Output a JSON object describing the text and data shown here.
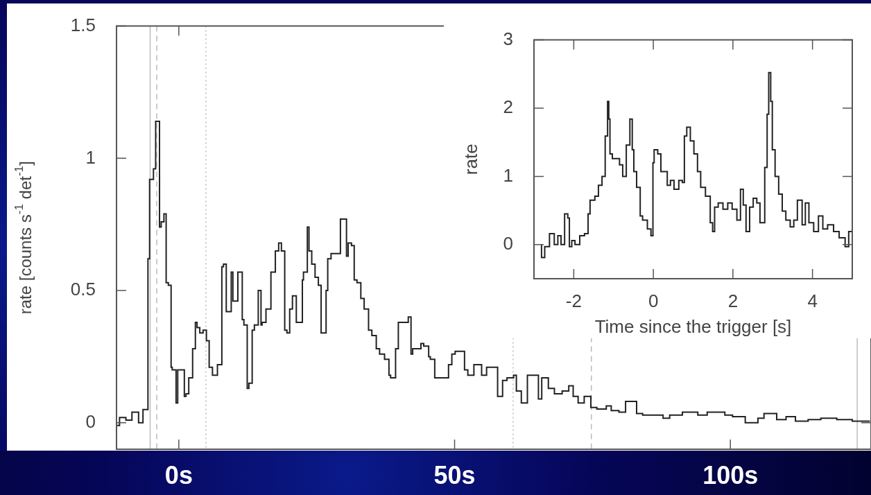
{
  "chart_data": [
    {
      "type": "step",
      "ylabel": "rate [counts s$^{-1}$ det$^{-1}$]",
      "color": "#222222",
      "x": [
        -11.3,
        -10.75,
        -9.6,
        -8.5,
        -7.3,
        -6.5,
        -5.6,
        -5.3,
        -4.6,
        -4.2,
        -3.9,
        -3.5,
        -3.2,
        -2.7,
        -2.3,
        -1.9,
        -1.4,
        -1.2,
        -0.5,
        -0.2,
        0.4,
        1.0,
        1.3,
        1.8,
        2.5,
        3.0,
        3.3,
        3.8,
        4.4,
        5.0,
        5.5,
        6.1,
        7.0,
        7.8,
        8.1,
        8.6,
        8.8,
        9.5,
        9.8,
        10.3,
        10.7,
        11.0,
        11.5,
        11.8,
        12.4,
        12.7,
        13.3,
        13.7,
        14.4,
        14.9,
        15.1,
        15.8,
        16.7,
        17.5,
        18.1,
        18.6,
        19.2,
        19.6,
        20.1,
        20.6,
        21.3,
        21.8,
        22.4,
        22.6,
        23.3,
        23.6,
        24.1,
        24.7,
        25.3,
        25.8,
        26.1,
        26.7,
        27.0,
        27.6,
        28.4,
        29.3,
        29.8,
        30.4,
        30.7,
        31.3,
        31.8,
        32.3,
        33.0,
        33.6,
        34.4,
        35.0,
        35.8,
        36.4,
        37.3,
        38.1,
        38.4,
        39.3,
        39.8,
        40.4,
        41.6,
        42.1,
        42.4,
        43.9,
        44.4,
        45.3,
        45.6,
        46.4,
        47.0,
        48.9,
        49.5,
        50.1,
        51.8,
        52.4,
        53.5,
        54.9,
        55.8,
        57.0,
        57.8,
        58.7,
        59.5,
        60.7,
        61.2,
        62.1,
        63.2,
        64.4,
        65.2,
        65.8,
        67.0,
        68.1,
        69.5,
        70.7,
        71.5,
        72.4,
        73.5,
        74.7,
        75.8,
        77.5,
        78.4,
        79.8,
        81.0,
        81.8,
        83.0,
        84.1,
        85.5,
        87.8,
        89.0,
        91.3,
        94.1,
        95.8,
        99.0,
        100.4,
        102.7,
        105.0,
        106.1,
        108.4,
        110.1,
        111.8,
        114.1,
        116.4,
        119.3,
        122.1,
        123.8,
        125.3
      ],
      "values": [
        0,
        -0.01,
        0.02,
        0.01,
        0.04,
        0.0,
        0.05,
        0.62,
        0.92,
        0.96,
        1.14,
        1.14,
        0.74,
        0.76,
        0.79,
        0.53,
        0.52,
        0.21,
        0.2,
        0.075,
        0.2,
        0.2,
        0.1,
        0.11,
        0.17,
        0.28,
        0.38,
        0.36,
        0.34,
        0.35,
        0.31,
        0.21,
        0.18,
        0.22,
        0.59,
        0.6,
        0.42,
        0.42,
        0.57,
        0.46,
        0.46,
        0.57,
        0.57,
        0.39,
        0.37,
        0.13,
        0.15,
        0.35,
        0.37,
        0.5,
        0.37,
        0.38,
        0.43,
        0.57,
        0.65,
        0.68,
        0.65,
        0.35,
        0.34,
        0.43,
        0.48,
        0.38,
        0.38,
        0.54,
        0.57,
        0.74,
        0.65,
        0.6,
        0.55,
        0.52,
        0.34,
        0.34,
        0.5,
        0.62,
        0.64,
        0.64,
        0.77,
        0.77,
        0.63,
        0.68,
        0.67,
        0.54,
        0.53,
        0.47,
        0.43,
        0.35,
        0.33,
        0.28,
        0.26,
        0.24,
        0.18,
        0.17,
        0.28,
        0.38,
        0.38,
        0.4,
        0.26,
        0.28,
        0.3,
        0.29,
        0.25,
        0.24,
        0.17,
        0.17,
        0.22,
        0.26,
        0.27,
        0.2,
        0.18,
        0.22,
        0.18,
        0.21,
        0.21,
        0.1,
        0.16,
        0.17,
        0.18,
        0.12,
        0.075,
        0.18,
        0.18,
        0.09,
        0.17,
        0.13,
        0.11,
        0.12,
        0.14,
        0.1,
        0.075,
        0.1,
        0.058,
        0.052,
        0.064,
        0.046,
        0.04,
        0.081,
        0.081,
        0.035,
        0.029,
        0.029,
        0.017,
        0.029,
        0.04,
        0.029,
        0.04,
        0.029,
        0.023,
        0.0,
        0.017,
        0.035,
        0.012,
        0.023,
        0.006,
        0.012,
        0.017,
        0.012,
        0.006,
        0.006
      ],
      "xlim": [
        -11.3,
        125.5
      ],
      "xticks": [
        {
          "value": 0,
          "label": "0s"
        },
        {
          "value": 50,
          "label": "50s"
        },
        {
          "value": 100,
          "label": "100s"
        }
      ],
      "ylim": [
        -0.1,
        1.5
      ],
      "yticks": [
        0,
        0.5,
        1,
        1.5
      ],
      "ref_lines": [
        {
          "axis": "x",
          "value": -5.2,
          "color": "#bbbbbb",
          "line_style": "solid"
        },
        {
          "axis": "x",
          "value": -4.0,
          "color": "#bbbbbb",
          "line_style": "dashed"
        },
        {
          "axis": "x",
          "value": 4.9,
          "color": "#bbbbbb",
          "line_style": "dotted"
        },
        {
          "axis": "x",
          "value": 60.6,
          "color": "#bbbbbb",
          "line_style": "dotted"
        },
        {
          "axis": "x",
          "value": 74.8,
          "color": "#bbbbbb",
          "line_style": "dashed"
        },
        {
          "axis": "x",
          "value": 123.0,
          "color": "#bbbbbb",
          "line_style": "solid"
        }
      ]
    },
    {
      "type": "step",
      "xlabel": "Time since the trigger [s]",
      "ylabel": "rate",
      "color": "#222222",
      "x": [
        -2.81,
        -2.73,
        -2.61,
        -2.49,
        -2.4,
        -2.32,
        -2.23,
        -2.15,
        -2.11,
        -2.05,
        -1.97,
        -1.85,
        -1.73,
        -1.64,
        -1.59,
        -1.47,
        -1.38,
        -1.29,
        -1.21,
        -1.15,
        -1.12,
        -1.09,
        -1.03,
        -0.94,
        -0.85,
        -0.77,
        -0.68,
        -0.59,
        -0.53,
        -0.49,
        -0.42,
        -0.33,
        -0.27,
        -0.15,
        -0.06,
        -0.01,
        0.02,
        0.11,
        0.19,
        0.26,
        0.35,
        0.43,
        0.52,
        0.64,
        0.73,
        0.78,
        0.84,
        0.93,
        1.02,
        1.11,
        1.19,
        1.31,
        1.43,
        1.49,
        1.54,
        1.63,
        1.75,
        1.87,
        1.98,
        2.1,
        2.19,
        2.26,
        2.33,
        2.42,
        2.51,
        2.6,
        2.68,
        2.8,
        2.86,
        2.9,
        2.95,
        2.99,
        3.06,
        3.15,
        3.24,
        3.33,
        3.44,
        3.53,
        3.62,
        3.74,
        3.82,
        3.91,
        4.03,
        4.15,
        4.26,
        4.38,
        4.53,
        4.67,
        4.82,
        4.91,
        4.99
      ],
      "values": [
        0,
        -0.19,
        -0.03,
        0.16,
        0,
        0.13,
        0,
        0.45,
        0.39,
        -0.03,
        0.06,
        0,
        0.13,
        0.16,
        0.45,
        0.65,
        0.71,
        0.87,
        1.0,
        1.59,
        2.1,
        1.84,
        1.33,
        1.26,
        1.26,
        1.17,
        1.0,
        1.46,
        1.84,
        1.39,
        1.07,
        0.84,
        0.42,
        0.36,
        0.23,
        0.13,
        1.2,
        1.39,
        1.33,
        1.07,
        1.07,
        0.87,
        0.94,
        0.81,
        0.94,
        0.91,
        1.59,
        1.72,
        1.52,
        1.33,
        1.07,
        0.84,
        0.71,
        0.32,
        0.19,
        0.55,
        0.61,
        0.52,
        0.61,
        0.52,
        0.36,
        0.81,
        0.58,
        0.19,
        0.55,
        0.68,
        0.61,
        0.32,
        1.13,
        1.91,
        2.52,
        2.1,
        1.39,
        1.0,
        0.74,
        0.49,
        0.36,
        0.26,
        0.36,
        0.65,
        0.29,
        0.61,
        0.32,
        0.19,
        0.42,
        0.23,
        0.29,
        0.19,
        0.1,
        -0.03,
        0.19
      ],
      "xlim": [
        -3,
        5
      ],
      "xticks": [
        -2,
        0,
        2,
        4
      ],
      "ylim": [
        -0.5,
        3
      ],
      "yticks": [
        0,
        1,
        2,
        3
      ]
    }
  ]
}
